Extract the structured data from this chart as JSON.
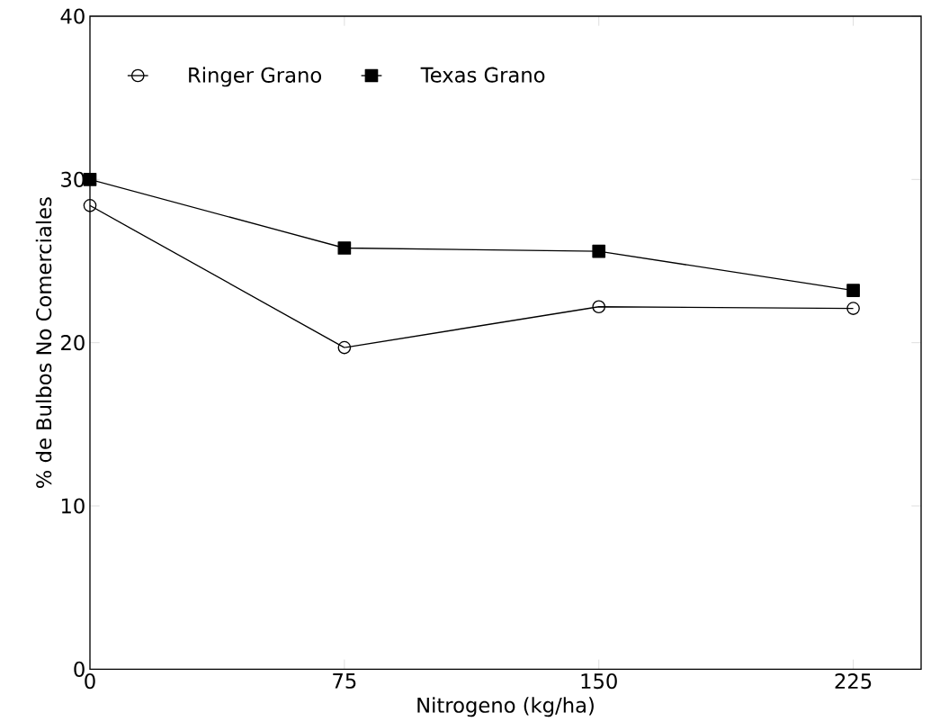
{
  "chart_data": {
    "type": "line",
    "xlabel": "Nitrogeno (kg/ha)",
    "ylabel": "% de Bulbos No Comerciales",
    "x": [
      0,
      75,
      150,
      225
    ],
    "series": [
      {
        "name": "Ringer Grano",
        "color": "#000000",
        "marker": "circle",
        "values": [
          28.4,
          19.7,
          22.2,
          22.1
        ]
      },
      {
        "name": "Texas Grano",
        "color": "#000000",
        "marker": "square",
        "values": [
          30.0,
          25.8,
          25.6,
          23.2
        ]
      }
    ],
    "xlim": [
      0,
      245
    ],
    "ylim": [
      0,
      40
    ],
    "xticks": [
      0,
      75,
      150,
      225
    ],
    "yticks": [
      0,
      10,
      20,
      30,
      40
    ],
    "legend": "top left",
    "line_style": "solid"
  }
}
